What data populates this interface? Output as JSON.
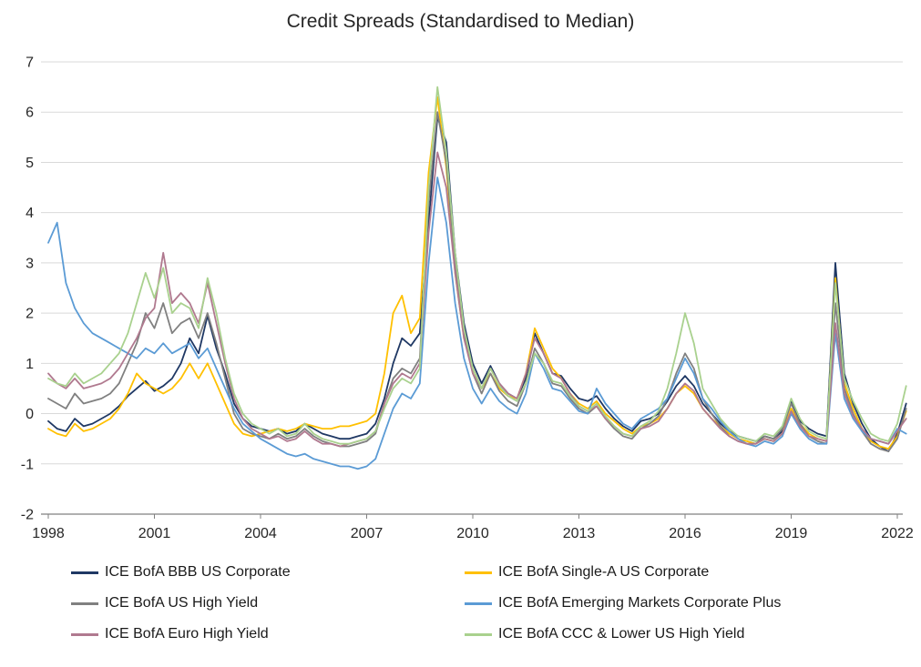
{
  "chart_data": {
    "type": "line",
    "title": "Credit Spreads (Standardised to Median)",
    "xlabel": "",
    "ylabel": "",
    "xlim": [
      1998,
      2022.25
    ],
    "ylim": [
      -2,
      7
    ],
    "x_ticks": [
      1998,
      2001,
      2004,
      2007,
      2010,
      2013,
      2016,
      2019,
      2022
    ],
    "y_ticks": [
      -2,
      -1,
      0,
      1,
      2,
      3,
      4,
      5,
      6,
      7
    ],
    "grid": "horizontal",
    "gridline_color": "#d9d9d9",
    "axis_color": "#808080",
    "legend_position": "bottom-two-columns",
    "x": [
      1998,
      1998.25,
      1998.5,
      1998.75,
      1999,
      1999.25,
      1999.5,
      1999.75,
      2000,
      2000.25,
      2000.5,
      2000.75,
      2001,
      2001.25,
      2001.5,
      2001.75,
      2002,
      2002.25,
      2002.5,
      2002.75,
      2003,
      2003.25,
      2003.5,
      2003.75,
      2004,
      2004.25,
      2004.5,
      2004.75,
      2005,
      2005.25,
      2005.5,
      2005.75,
      2006,
      2006.25,
      2006.5,
      2006.75,
      2007,
      2007.25,
      2007.5,
      2007.75,
      2008,
      2008.25,
      2008.5,
      2008.75,
      2009,
      2009.25,
      2009.5,
      2009.75,
      2010,
      2010.25,
      2010.5,
      2010.75,
      2011,
      2011.25,
      2011.5,
      2011.75,
      2012,
      2012.25,
      2012.5,
      2012.75,
      2013,
      2013.25,
      2013.5,
      2013.75,
      2014,
      2014.25,
      2014.5,
      2014.75,
      2015,
      2015.25,
      2015.5,
      2015.75,
      2016,
      2016.25,
      2016.5,
      2016.75,
      2017,
      2017.25,
      2017.5,
      2017.75,
      2018,
      2018.25,
      2018.5,
      2018.75,
      2019,
      2019.25,
      2019.5,
      2019.75,
      2020,
      2020.25,
      2020.5,
      2020.75,
      2021,
      2021.25,
      2021.5,
      2021.75,
      2022,
      2022.25
    ],
    "series": [
      {
        "name": "ICE BofA BBB US Corporate",
        "color": "#1f3864",
        "values": [
          -0.15,
          -0.3,
          -0.35,
          -0.1,
          -0.25,
          -0.2,
          -0.1,
          0,
          0.15,
          0.35,
          0.5,
          0.65,
          0.45,
          0.55,
          0.7,
          1.0,
          1.5,
          1.2,
          1.95,
          1.3,
          0.8,
          0.2,
          -0.1,
          -0.25,
          -0.3,
          -0.35,
          -0.3,
          -0.4,
          -0.35,
          -0.2,
          -0.3,
          -0.4,
          -0.45,
          -0.5,
          -0.5,
          -0.45,
          -0.4,
          -0.2,
          0.3,
          1.0,
          1.5,
          1.35,
          1.6,
          3.8,
          5.9,
          5.4,
          3.2,
          1.8,
          1.0,
          0.6,
          0.95,
          0.6,
          0.4,
          0.3,
          0.7,
          1.6,
          1.2,
          0.8,
          0.75,
          0.5,
          0.3,
          0.25,
          0.35,
          0.1,
          -0.1,
          -0.25,
          -0.35,
          -0.15,
          -0.1,
          0,
          0.25,
          0.55,
          0.75,
          0.55,
          0.2,
          0,
          -0.2,
          -0.35,
          -0.45,
          -0.5,
          -0.55,
          -0.45,
          -0.5,
          -0.35,
          0.25,
          -0.15,
          -0.3,
          -0.4,
          -0.45,
          3.0,
          0.8,
          0.2,
          -0.2,
          -0.5,
          -0.65,
          -0.75,
          -0.4,
          0.2
        ]
      },
      {
        "name": "ICE BofA Single-A US Corporate",
        "color": "#ffc000",
        "values": [
          -0.3,
          -0.4,
          -0.45,
          -0.2,
          -0.35,
          -0.3,
          -0.2,
          -0.1,
          0.1,
          0.4,
          0.8,
          0.6,
          0.5,
          0.4,
          0.5,
          0.7,
          1.0,
          0.7,
          1.0,
          0.6,
          0.2,
          -0.2,
          -0.4,
          -0.45,
          -0.4,
          -0.35,
          -0.3,
          -0.35,
          -0.3,
          -0.2,
          -0.25,
          -0.3,
          -0.3,
          -0.25,
          -0.25,
          -0.2,
          -0.15,
          0,
          0.8,
          2.0,
          2.35,
          1.6,
          1.9,
          4.8,
          6.3,
          4.9,
          2.8,
          1.5,
          0.9,
          0.5,
          0.8,
          0.5,
          0.35,
          0.3,
          0.8,
          1.7,
          1.3,
          0.9,
          0.7,
          0.4,
          0.2,
          0.1,
          0.25,
          0,
          -0.15,
          -0.3,
          -0.4,
          -0.25,
          -0.2,
          -0.1,
          0.1,
          0.4,
          0.55,
          0.4,
          0.1,
          -0.1,
          -0.25,
          -0.4,
          -0.5,
          -0.55,
          -0.6,
          -0.5,
          -0.55,
          -0.4,
          0.1,
          -0.2,
          -0.4,
          -0.5,
          -0.55,
          2.7,
          0.6,
          0.1,
          -0.3,
          -0.55,
          -0.65,
          -0.7,
          -0.45,
          0.05
        ]
      },
      {
        "name": "ICE BofA US High Yield",
        "color": "#808080",
        "values": [
          0.3,
          0.2,
          0.1,
          0.4,
          0.2,
          0.25,
          0.3,
          0.4,
          0.6,
          1.0,
          1.4,
          2.0,
          1.7,
          2.2,
          1.6,
          1.8,
          1.9,
          1.5,
          2.0,
          1.4,
          0.7,
          0,
          -0.3,
          -0.4,
          -0.45,
          -0.5,
          -0.4,
          -0.5,
          -0.45,
          -0.3,
          -0.45,
          -0.55,
          -0.6,
          -0.65,
          -0.65,
          -0.6,
          -0.55,
          -0.4,
          0.2,
          0.7,
          0.9,
          0.8,
          1.1,
          4.2,
          6.0,
          5.0,
          3.0,
          1.6,
          0.8,
          0.4,
          0.8,
          0.45,
          0.25,
          0.15,
          0.6,
          1.3,
          1.0,
          0.6,
          0.55,
          0.3,
          0.1,
          0,
          0.15,
          -0.1,
          -0.3,
          -0.45,
          -0.5,
          -0.3,
          -0.2,
          -0.05,
          0.3,
          0.8,
          1.2,
          0.9,
          0.3,
          0,
          -0.25,
          -0.45,
          -0.55,
          -0.6,
          -0.6,
          -0.45,
          -0.5,
          -0.3,
          0.2,
          -0.2,
          -0.45,
          -0.55,
          -0.6,
          2.2,
          0.5,
          0,
          -0.35,
          -0.6,
          -0.7,
          -0.75,
          -0.5,
          0.1
        ]
      },
      {
        "name": "ICE BofA Emerging Markets Corporate Plus",
        "color": "#5b9bd5",
        "values": [
          3.4,
          3.8,
          2.6,
          2.1,
          1.8,
          1.6,
          1.5,
          1.4,
          1.3,
          1.2,
          1.1,
          1.3,
          1.2,
          1.4,
          1.2,
          1.3,
          1.4,
          1.1,
          1.3,
          0.9,
          0.5,
          0.1,
          -0.2,
          -0.35,
          -0.5,
          -0.6,
          -0.7,
          -0.8,
          -0.85,
          -0.8,
          -0.9,
          -0.95,
          -1.0,
          -1.05,
          -1.05,
          -1.1,
          -1.05,
          -0.9,
          -0.4,
          0.1,
          0.4,
          0.3,
          0.6,
          3.0,
          4.7,
          3.8,
          2.2,
          1.1,
          0.5,
          0.2,
          0.5,
          0.25,
          0.1,
          0,
          0.4,
          1.2,
          0.9,
          0.5,
          0.45,
          0.25,
          0.05,
          0,
          0.5,
          0.2,
          0,
          -0.2,
          -0.3,
          -0.1,
          0,
          0.1,
          0.3,
          0.7,
          1.1,
          0.8,
          0.3,
          0.1,
          -0.15,
          -0.35,
          -0.5,
          -0.6,
          -0.65,
          -0.55,
          -0.6,
          -0.45,
          0,
          -0.3,
          -0.5,
          -0.6,
          -0.6,
          1.6,
          0.3,
          -0.1,
          -0.35,
          -0.5,
          -0.55,
          -0.6,
          -0.3,
          -0.4
        ]
      },
      {
        "name": "ICE BofA Euro High Yield",
        "color": "#b0798f",
        "values": [
          0.8,
          0.6,
          0.5,
          0.7,
          0.5,
          0.55,
          0.6,
          0.7,
          0.9,
          1.2,
          1.5,
          1.9,
          2.1,
          3.2,
          2.2,
          2.4,
          2.2,
          1.8,
          2.6,
          1.8,
          1.0,
          0.3,
          -0.1,
          -0.3,
          -0.4,
          -0.5,
          -0.45,
          -0.55,
          -0.5,
          -0.35,
          -0.5,
          -0.6,
          -0.6,
          -0.65,
          -0.6,
          -0.55,
          -0.5,
          -0.35,
          0.2,
          0.6,
          0.8,
          0.7,
          1.0,
          3.6,
          5.2,
          4.5,
          2.8,
          1.5,
          0.8,
          0.5,
          0.9,
          0.6,
          0.4,
          0.3,
          0.8,
          1.5,
          1.2,
          0.8,
          0.7,
          0.4,
          0.15,
          0.05,
          0.15,
          -0.1,
          -0.25,
          -0.4,
          -0.45,
          -0.3,
          -0.25,
          -0.15,
          0.1,
          0.4,
          0.6,
          0.45,
          0.1,
          -0.1,
          -0.3,
          -0.45,
          -0.55,
          -0.6,
          -0.6,
          -0.5,
          -0.55,
          -0.4,
          0.05,
          -0.25,
          -0.45,
          -0.5,
          -0.55,
          1.8,
          0.4,
          -0.05,
          -0.3,
          -0.5,
          -0.55,
          -0.6,
          -0.35,
          -0.1
        ]
      },
      {
        "name": "ICE BofA CCC & Lower US High Yield",
        "color": "#a9d18e",
        "values": [
          0.7,
          0.6,
          0.55,
          0.8,
          0.6,
          0.7,
          0.8,
          1.0,
          1.2,
          1.6,
          2.2,
          2.8,
          2.3,
          2.9,
          2.0,
          2.2,
          2.1,
          1.7,
          2.7,
          2.0,
          1.1,
          0.4,
          0,
          -0.2,
          -0.3,
          -0.4,
          -0.3,
          -0.45,
          -0.4,
          -0.2,
          -0.4,
          -0.5,
          -0.55,
          -0.6,
          -0.6,
          -0.55,
          -0.5,
          -0.35,
          0.1,
          0.5,
          0.7,
          0.6,
          0.9,
          4.5,
          6.5,
          5.2,
          3.2,
          1.7,
          0.9,
          0.5,
          0.9,
          0.55,
          0.35,
          0.25,
          0.6,
          1.2,
          1.0,
          0.65,
          0.6,
          0.35,
          0.15,
          0.05,
          0.2,
          -0.05,
          -0.25,
          -0.4,
          -0.45,
          -0.25,
          -0.15,
          0.05,
          0.5,
          1.2,
          2.0,
          1.4,
          0.5,
          0.2,
          -0.1,
          -0.3,
          -0.45,
          -0.5,
          -0.55,
          -0.4,
          -0.45,
          -0.25,
          0.3,
          -0.1,
          -0.35,
          -0.45,
          -0.5,
          2.6,
          0.7,
          0.25,
          -0.1,
          -0.4,
          -0.5,
          -0.55,
          -0.2,
          0.55
        ]
      }
    ]
  }
}
